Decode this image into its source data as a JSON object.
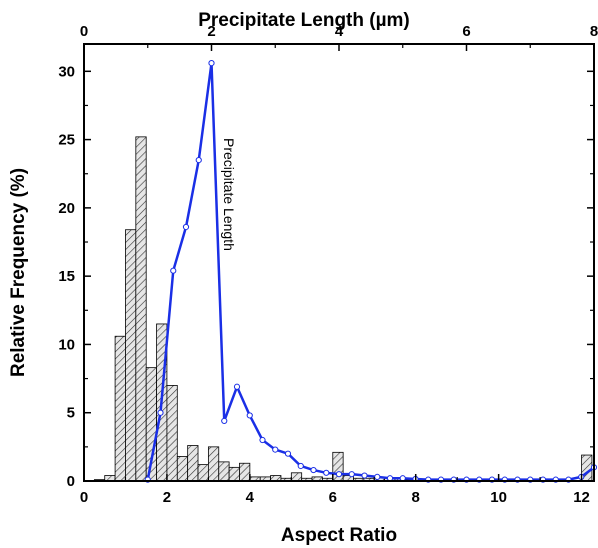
{
  "chart_data": {
    "type": "bar",
    "xlabel": "Aspect Ratio",
    "ylabel": "Relative Frequency (%)",
    "x2label": "Precipitate Length (µm)",
    "xlim": [
      0,
      12.3
    ],
    "ylim": [
      0,
      32
    ],
    "x2lim": [
      0,
      8
    ],
    "xticks": [
      "0",
      "2",
      "4",
      "6",
      "8",
      "10",
      "12"
    ],
    "yticks": [
      "0",
      "5",
      "10",
      "15",
      "20",
      "25",
      "30"
    ],
    "x2ticks": [
      "0",
      "2",
      "4",
      "6",
      "8"
    ],
    "bar_width": 0.25,
    "histogram": {
      "name": "Aspect Ratio",
      "fill": "hatched gray",
      "x": [
        0.25,
        0.5,
        0.75,
        1.0,
        1.25,
        1.5,
        1.75,
        2.0,
        2.25,
        2.5,
        2.75,
        3.0,
        3.25,
        3.5,
        3.75,
        4.0,
        4.25,
        4.5,
        4.75,
        5.0,
        5.25,
        5.5,
        5.75,
        6.0,
        6.25,
        6.5,
        6.75,
        7.0,
        7.25,
        7.5,
        7.75,
        8.0,
        12.0
      ],
      "values": [
        0.1,
        0.4,
        10.6,
        18.4,
        25.2,
        8.3,
        11.5,
        7.0,
        1.8,
        2.6,
        1.2,
        2.5,
        1.4,
        1.0,
        1.3,
        0.3,
        0.3,
        0.4,
        0.2,
        0.6,
        0.2,
        0.3,
        0.2,
        2.1,
        0.4,
        0.2,
        0.2,
        0.3,
        0.2,
        0.2,
        0.1,
        0.1,
        1.9
      ]
    },
    "series": [
      {
        "name": "Precipitate Length",
        "axis": "top",
        "color": "#1a2fe6",
        "x": [
          1.0,
          1.2,
          1.4,
          1.6,
          1.8,
          2.0,
          2.2,
          2.4,
          2.6,
          2.8,
          3.0,
          3.2,
          3.4,
          3.6,
          3.8,
          4.0,
          4.2,
          4.4,
          4.6,
          4.8,
          5.0,
          5.2,
          5.4,
          5.6,
          5.8,
          6.0,
          6.2,
          6.4,
          6.6,
          6.8,
          7.0,
          7.2,
          7.4,
          7.6,
          7.8,
          8.0
        ],
        "values": [
          0.1,
          5.0,
          15.4,
          18.6,
          23.5,
          30.6,
          4.4,
          6.9,
          4.8,
          3.0,
          2.3,
          2.0,
          1.1,
          0.8,
          0.6,
          0.5,
          0.5,
          0.4,
          0.3,
          0.2,
          0.2,
          0.15,
          0.1,
          0.1,
          0.1,
          0.1,
          0.1,
          0.1,
          0.1,
          0.1,
          0.1,
          0.1,
          0.1,
          0.1,
          0.3,
          1.0
        ]
      }
    ],
    "annotations": [
      {
        "text": "Precipitate Length"
      }
    ],
    "grid": false,
    "legend": "none"
  }
}
